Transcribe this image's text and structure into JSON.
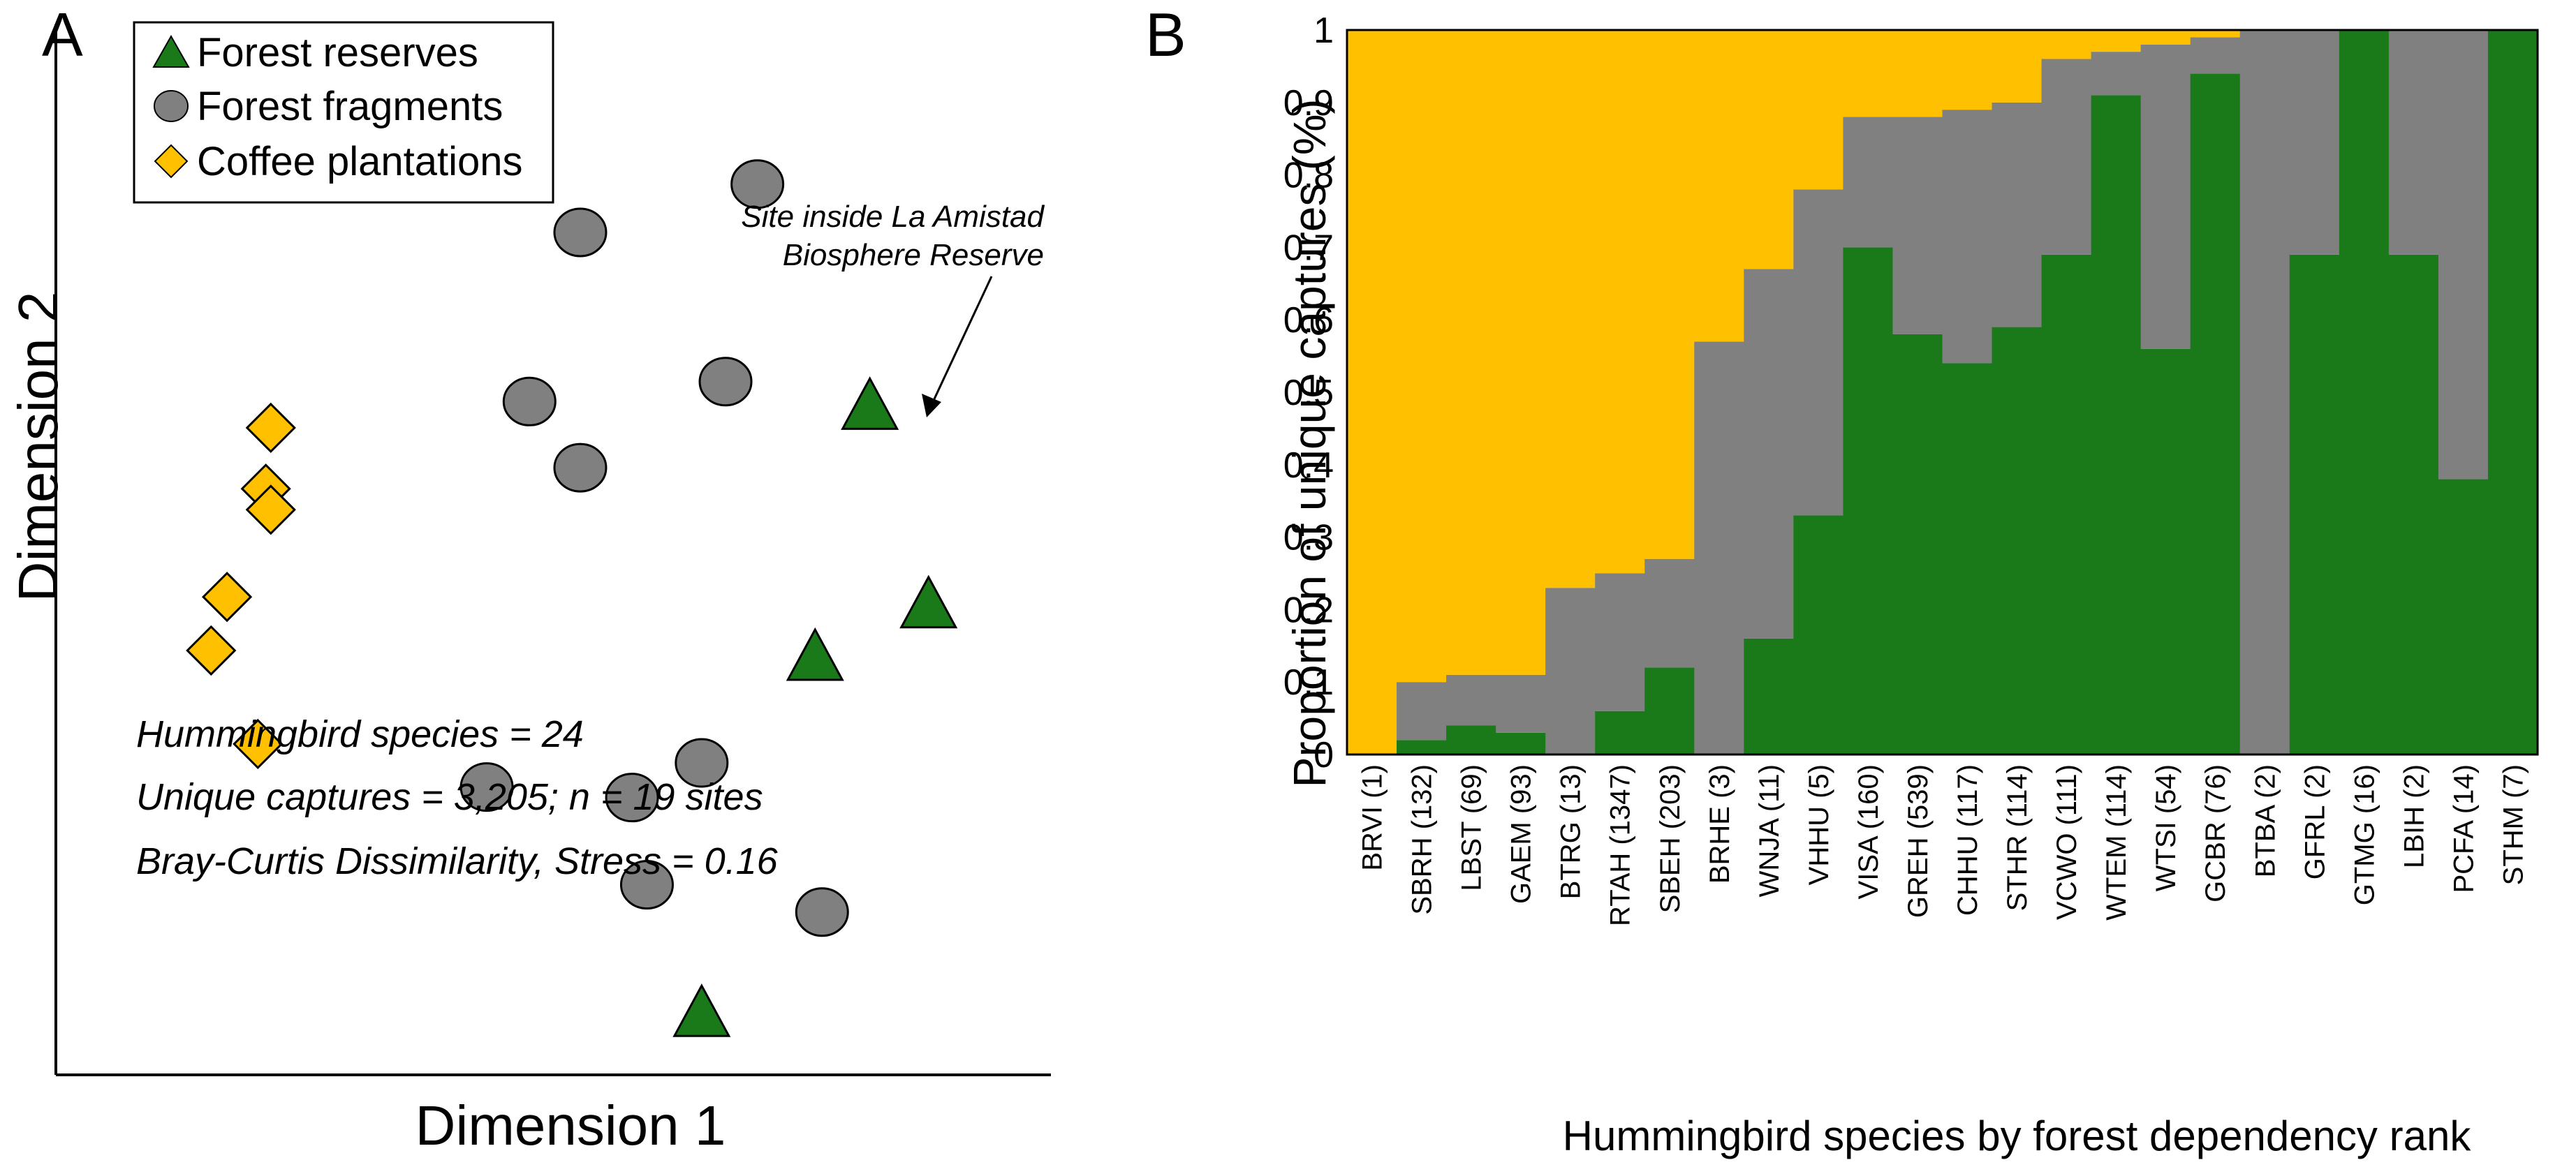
{
  "colors": {
    "reserve": "#1a7a1a",
    "fragment": "#808080",
    "coffee": "#ffc000",
    "stroke": "#000000"
  },
  "chart_data": [
    {
      "type": "scatter",
      "panel_label": "A",
      "xlabel": "Dimension 1",
      "ylabel": "Dimension 2",
      "xlim": [
        0,
        100
      ],
      "ylim": [
        0,
        100
      ],
      "legend": [
        {
          "label": "Forest reserves",
          "marker": "triangle",
          "color": "#1a7a1a"
        },
        {
          "label": "Forest fragments",
          "marker": "circle",
          "color": "#808080"
        },
        {
          "label": "Coffee plantations",
          "marker": "diamond",
          "color": "#ffc000"
        }
      ],
      "series": [
        {
          "name": "Forest reserves",
          "marker": "triangle",
          "x": [
            81.8,
            87.7,
            76.3,
            64.9
          ],
          "y": [
            63.5,
            44.6,
            39.6,
            5.7
          ]
        },
        {
          "name": "Forest fragments",
          "marker": "circle",
          "x": [
            70.5,
            52.7,
            67.3,
            47.6,
            52.7,
            43.3,
            57.9,
            64.9,
            59.4,
            77.0
          ],
          "y": [
            84.8,
            80.2,
            66.0,
            64.1,
            57.8,
            27.4,
            26.4,
            29.7,
            18.1,
            15.5
          ]
        },
        {
          "name": "Coffee plantations",
          "marker": "diamond",
          "x": [
            21.6,
            21.1,
            21.6,
            17.2,
            15.6,
            20.3
          ],
          "y": [
            61.6,
            55.8,
            53.8,
            45.5,
            40.4,
            31.5
          ]
        }
      ],
      "annotation": {
        "text_lines": [
          "Site inside La Amistad",
          "Biosphere Reserve"
        ],
        "points_to": "Forest reserves point 2"
      },
      "info_lines": [
        "Hummingbird species = 24",
        "Unique captures = 3,205; n = 19 sites",
        "Bray-Curtis Dissimilarity, Stress = 0.16"
      ]
    },
    {
      "type": "bar",
      "stacked": true,
      "panel_label": "B",
      "xlabel": "Hummingbird species by forest dependency rank",
      "ylabel": "Proportion of unique captures (%)",
      "ylim": [
        0,
        1
      ],
      "yticks": [
        "0",
        "0.1",
        "0.2",
        "0.3",
        "0.4",
        "0.5",
        "0.6",
        "0.7",
        "0.8",
        "0.9",
        "1"
      ],
      "categories": [
        "BRVI (1)",
        "SBRH (132)",
        "LBST (69)",
        "GAEM (93)",
        "BTRG (13)",
        "RTAH (1347)",
        "SBEH (203)",
        "BRHE (3)",
        "WNJA (11)",
        "VHHU (5)",
        "VISA (160)",
        "GREH (539)",
        "CHHU (117)",
        "STHR (114)",
        "VCWO (111)",
        "WTEM (114)",
        "WTSI (54)",
        "GCBR (76)",
        "BTBA (2)",
        "GFRL (2)",
        "GTMG (16)",
        "LBIH (2)",
        "PCFA (14)",
        "STHM (7)"
      ],
      "series": [
        {
          "name": "Forest reserves",
          "color": "#1a7a1a",
          "values": [
            0,
            0.02,
            0.04,
            0.03,
            0,
            0.06,
            0.12,
            0,
            0.16,
            0.33,
            0.7,
            0.58,
            0.54,
            0.59,
            0.69,
            0.91,
            0.56,
            0.94,
            0,
            0.69,
            1.0,
            0.69,
            0.38,
            1.0
          ]
        },
        {
          "name": "Forest fragments",
          "color": "#808080",
          "values": [
            0,
            0.08,
            0.07,
            0.08,
            0.23,
            0.19,
            0.15,
            0.57,
            0.51,
            0.45,
            0.18,
            0.3,
            0.35,
            0.31,
            0.27,
            0.06,
            0.42,
            0.05,
            1.0,
            0.31,
            0,
            0.31,
            0.62,
            0
          ]
        },
        {
          "name": "Coffee plantations",
          "color": "#ffc000",
          "values": [
            1.0,
            0.9,
            0.89,
            0.89,
            0.77,
            0.75,
            0.73,
            0.43,
            0.33,
            0.22,
            0.12,
            0.12,
            0.11,
            0.1,
            0.04,
            0.03,
            0.02,
            0.01,
            0,
            0,
            0,
            0,
            0,
            0
          ]
        }
      ]
    }
  ]
}
